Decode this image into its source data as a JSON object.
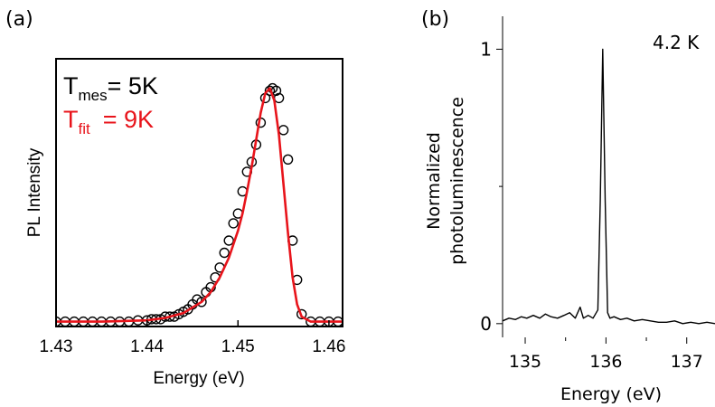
{
  "chart_data": [
    {
      "panel_label": "(a)",
      "type": "scatter",
      "xlabel": "Energy (eV)",
      "ylabel": "PL Intensity",
      "xlim": [
        1.43,
        1.4615
      ],
      "ylim": [
        0.0,
        1.09
      ],
      "xticks": [
        1.43,
        1.44,
        1.45,
        1.46
      ],
      "xtick_labels": [
        "1.43",
        "1.44",
        "1.45",
        "1.46"
      ],
      "annotations": {
        "t_mes": {
          "main": "T",
          "sub": "mes",
          "value": "= 5K",
          "color": "#000000"
        },
        "t_fit": {
          "main": "T",
          "sub": "fit",
          "value": "= 9K",
          "color": "#e8141b"
        }
      },
      "series": [
        {
          "marker": "open-circle",
          "color": "#000000",
          "x": [
            1.43,
            1.431,
            1.432,
            1.433,
            1.434,
            1.435,
            1.436,
            1.437,
            1.438,
            1.439,
            1.44,
            1.4405,
            1.441,
            1.4415,
            1.442,
            1.4425,
            1.443,
            1.4435,
            1.444,
            1.4445,
            1.445,
            1.4455,
            1.446,
            1.4465,
            1.447,
            1.4475,
            1.448,
            1.4485,
            1.449,
            1.4495,
            1.45,
            1.4505,
            1.451,
            1.4515,
            1.452,
            1.4525,
            1.453,
            1.4535,
            1.4538,
            1.4542,
            1.4545,
            1.455,
            1.4555,
            1.456,
            1.4565,
            1.457,
            1.458,
            1.459,
            1.46,
            1.461
          ],
          "y": [
            0.02,
            0.02,
            0.02,
            0.02,
            0.02,
            0.02,
            0.02,
            0.02,
            0.02,
            0.025,
            0.025,
            0.03,
            0.03,
            0.03,
            0.04,
            0.04,
            0.04,
            0.05,
            0.06,
            0.07,
            0.09,
            0.11,
            0.1,
            0.14,
            0.16,
            0.2,
            0.24,
            0.3,
            0.35,
            0.42,
            0.46,
            0.55,
            0.63,
            0.67,
            0.74,
            0.83,
            0.93,
            0.96,
            0.97,
            0.96,
            0.93,
            0.8,
            0.68,
            0.35,
            0.19,
            0.05,
            0.02,
            0.02,
            0.02,
            0.02
          ]
        },
        {
          "name": "fit",
          "marker": "line",
          "color": "#e8141b",
          "x": [
            1.43,
            1.435,
            1.44,
            1.442,
            1.444,
            1.446,
            1.447,
            1.448,
            1.449,
            1.45,
            1.4505,
            1.451,
            1.4515,
            1.452,
            1.4525,
            1.453,
            1.4535,
            1.454,
            1.4545,
            1.455,
            1.4555,
            1.456,
            1.4565,
            1.457,
            1.458,
            1.46,
            1.4615
          ],
          "y": [
            0.02,
            0.02,
            0.025,
            0.035,
            0.055,
            0.1,
            0.14,
            0.2,
            0.28,
            0.39,
            0.46,
            0.55,
            0.65,
            0.76,
            0.87,
            0.95,
            0.97,
            0.92,
            0.78,
            0.58,
            0.38,
            0.2,
            0.09,
            0.04,
            0.02,
            0.02,
            0.02
          ]
        }
      ]
    },
    {
      "panel_label": "(b)",
      "type": "line",
      "xlabel": "Energy (eV)",
      "ylabel_line1": "Normalized",
      "ylabel_line2": "photoluminescence",
      "xlim": [
        134.72,
        137.35
      ],
      "ylim": [
        -0.05,
        1.12
      ],
      "xticks": [
        135,
        136,
        137
      ],
      "xtick_labels": [
        "135",
        "136",
        "137"
      ],
      "yticks": [
        0,
        1
      ],
      "ytick_labels": [
        "0",
        "1"
      ],
      "annotation": "4.2 K",
      "series": [
        {
          "color": "#000000",
          "x": [
            134.72,
            134.8,
            134.88,
            134.95,
            135.02,
            135.1,
            135.18,
            135.25,
            135.32,
            135.4,
            135.48,
            135.55,
            135.62,
            135.68,
            135.72,
            135.78,
            135.84,
            135.9,
            135.93,
            135.96,
            135.99,
            136.02,
            136.05,
            136.1,
            136.18,
            136.26,
            136.35,
            136.45,
            136.55,
            136.65,
            136.75,
            136.85,
            136.95,
            137.05,
            137.15,
            137.25,
            137.35
          ],
          "y": [
            0.01,
            0.02,
            0.015,
            0.025,
            0.02,
            0.03,
            0.02,
            0.035,
            0.025,
            0.02,
            0.03,
            0.04,
            0.02,
            0.06,
            0.02,
            0.03,
            0.02,
            0.05,
            0.45,
            1.0,
            0.45,
            0.04,
            0.02,
            0.025,
            0.015,
            0.02,
            0.01,
            0.015,
            0.01,
            0.005,
            0.005,
            0.01,
            0.0,
            0.005,
            0.0,
            0.005,
            0.0
          ]
        }
      ]
    }
  ]
}
